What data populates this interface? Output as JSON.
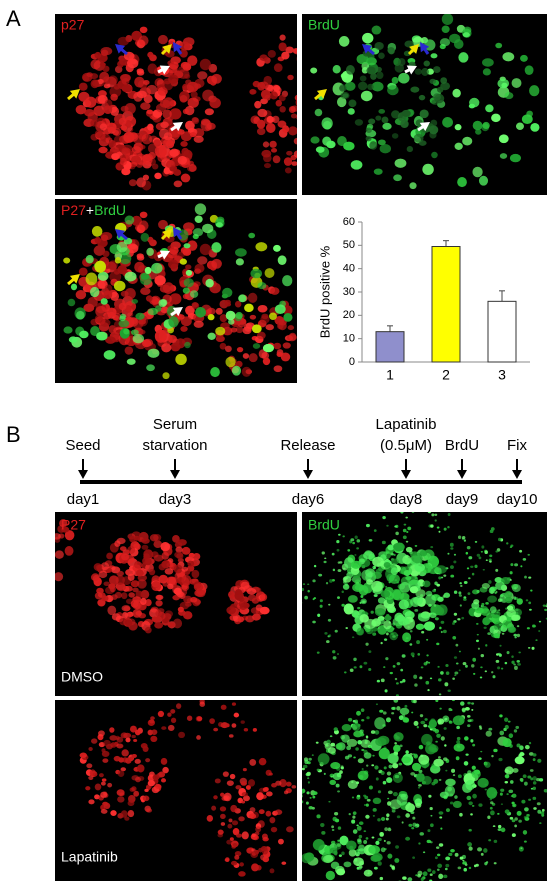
{
  "panel_labels": [
    "A",
    "B"
  ],
  "panel_a": {
    "image_labels": [
      "p27",
      "BrdU"
    ],
    "merge_label": [
      "P27",
      "+",
      "BrdU"
    ]
  },
  "chart_data": {
    "type": "bar",
    "ylabel": "BrdU positive %",
    "categories": [
      "1",
      "2",
      "3"
    ],
    "values": [
      13,
      49.5,
      26
    ],
    "errors": [
      2.5,
      2.5,
      4.5
    ],
    "colors": [
      "#8f8fcc",
      "#ffff00",
      "#ffffff"
    ],
    "ylim": [
      0,
      60
    ],
    "yticks": [
      0,
      10,
      20,
      30,
      40,
      50,
      60
    ],
    "grid": false
  },
  "timeline": {
    "events": [
      {
        "label": [
          "Seed"
        ],
        "day": "day1"
      },
      {
        "label": [
          "Serum",
          "starvation"
        ],
        "day": "day3"
      },
      {
        "label": [
          "Release"
        ],
        "day": "day6"
      },
      {
        "label": [
          "Lapatinib",
          "(0.5μM)"
        ],
        "day": "day8"
      },
      {
        "label": [
          "BrdU"
        ],
        "day": "day9"
      },
      {
        "label": [
          "Fix"
        ],
        "day": "day10"
      }
    ]
  },
  "panel_b": {
    "columns": [
      "P27",
      "BrdU"
    ],
    "rows": [
      "DMSO",
      "Lapatinib"
    ]
  }
}
